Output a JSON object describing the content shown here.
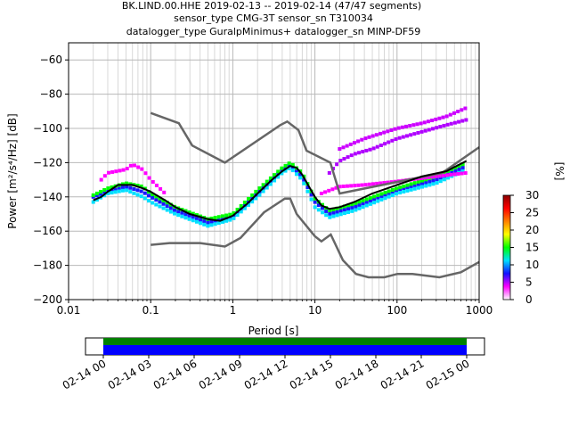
{
  "chart_data": [
    {
      "type": "heatmap",
      "title_lines": [
        "BK.LIND.00.HHE   2019-02-13 -- 2019-02-14  (47/47 segments)",
        "sensor_type CMG-3T sensor_sn T310034",
        "datalogger_type GuralpMinimus+ datalogger_sn MINP-DF59"
      ],
      "xlabel": "Period [s]",
      "ylabel": "Power [m²/s⁴/Hz] [dB]",
      "x_scale": "log",
      "xlim": [
        0.01,
        1000
      ],
      "ylim": [
        -200,
        -50
      ],
      "x_ticks": [
        {
          "value": 0.01,
          "label": "0.01"
        },
        {
          "value": 0.1,
          "label": "0.1"
        },
        {
          "value": 1,
          "label": "1"
        },
        {
          "value": 10,
          "label": "10"
        },
        {
          "value": 100,
          "label": "100"
        },
        {
          "value": 1000,
          "label": "1000"
        }
      ],
      "y_ticks": [
        {
          "value": -60,
          "label": "−60"
        },
        {
          "value": -80,
          "label": "−80"
        },
        {
          "value": -100,
          "label": "−100"
        },
        {
          "value": -120,
          "label": "−120"
        },
        {
          "value": -140,
          "label": "−140"
        },
        {
          "value": -160,
          "label": "−160"
        },
        {
          "value": -180,
          "label": "−180"
        },
        {
          "value": -200,
          "label": "−200"
        }
      ],
      "grid": true,
      "colorbar": {
        "label": "[%]",
        "min": 0,
        "max": 30,
        "ticks": [
          "0",
          "5",
          "10",
          "15",
          "20",
          "25",
          "30"
        ],
        "colors": [
          "#ffffff",
          "#ff00ff",
          "#1010ff",
          "#00e0ff",
          "#00ff00",
          "#ffff00",
          "#ff8000",
          "#ff0000",
          "#8b0000"
        ]
      },
      "noise_models": {
        "color": "#666666",
        "high": {
          "x": [
            0.1,
            0.22,
            0.32,
            0.8,
            3.8,
            4.6,
            6.3,
            7.9,
            15.4,
            20,
            354.8,
            1000
          ],
          "y": [
            -91,
            -97,
            -110,
            -120,
            -98,
            -96,
            -101,
            -113,
            -120,
            -138,
            -126,
            -111
          ]
        },
        "low": {
          "x": [
            0.1,
            0.17,
            0.4,
            0.8,
            1.24,
            2.4,
            4.3,
            5,
            6,
            10,
            12,
            15.6,
            21.9,
            31.6,
            45,
            70,
            101,
            154,
            328,
            600,
            1000
          ],
          "y": [
            -168,
            -167,
            -167,
            -169,
            -164,
            -149,
            -141,
            -141,
            -150,
            -163,
            -166,
            -162,
            -177,
            -185,
            -187,
            -187,
            -185,
            -185,
            -187,
            -184,
            -178
          ]
        }
      },
      "mode_curve": {
        "color": "#000000",
        "x": [
          0.02,
          0.025,
          0.03,
          0.04,
          0.06,
          0.08,
          0.1,
          0.15,
          0.2,
          0.3,
          0.5,
          0.7,
          1,
          1.5,
          2,
          3,
          4,
          5,
          6,
          7,
          8,
          10,
          12,
          15,
          20,
          30,
          50,
          100,
          200,
          400,
          700
        ],
        "y": [
          -142,
          -140,
          -137,
          -133,
          -133,
          -135,
          -137,
          -142,
          -146,
          -150,
          -153,
          -154,
          -151,
          -144,
          -138,
          -130,
          -125,
          -122,
          -123,
          -127,
          -132,
          -140,
          -145,
          -147,
          -146,
          -143,
          -138,
          -133,
          -128,
          -125,
          -119
        ]
      },
      "heatmap_traces": [
        {
          "name": "",
          "color": "#1a1aff",
          "x": [
            0.02,
            0.03,
            0.05,
            0.08,
            0.1,
            0.2,
            0.5,
            1,
            2,
            4,
            5,
            7,
            10,
            15,
            30,
            100,
            300,
            700
          ],
          "y": [
            -140,
            -137,
            -134,
            -137,
            -140,
            -148,
            -155,
            -152,
            -138,
            -124,
            -121,
            -128,
            -143,
            -150,
            -146,
            -136,
            -130,
            -122
          ]
        },
        {
          "name": "",
          "color": "#00e0ff",
          "x": [
            0.02,
            0.03,
            0.05,
            0.08,
            0.1,
            0.2,
            0.5,
            1,
            2,
            4,
            5,
            7,
            10,
            15,
            30,
            100,
            300,
            700
          ],
          "y": [
            -143,
            -138,
            -136,
            -140,
            -143,
            -150,
            -157,
            -153,
            -140,
            -126,
            -123,
            -130,
            -146,
            -152,
            -148,
            -138,
            -132,
            -124
          ]
        },
        {
          "name": "",
          "color": "#00ff00",
          "x": [
            0.02,
            0.03,
            0.05,
            0.08,
            0.1,
            0.2,
            0.5,
            1,
            2,
            4,
            5,
            7,
            10,
            15,
            30,
            100,
            300,
            700
          ],
          "y": [
            -139,
            -135,
            -132,
            -134,
            -138,
            -146,
            -153,
            -150,
            -136,
            -123,
            -120,
            -126,
            -141,
            -148,
            -144,
            -135,
            -128,
            -120
          ]
        },
        {
          "name": "",
          "color": "#ff00ff",
          "x": [
            0.025,
            0.03,
            0.05,
            0.06,
            0.08,
            0.1,
            0.15
          ],
          "y": [
            -130,
            -126,
            -124,
            -121,
            -124,
            -130,
            -138
          ]
        },
        {
          "name": "",
          "color": "#b000ff",
          "x": [
            15,
            20,
            30,
            50,
            100,
            200,
            400,
            700
          ],
          "y": [
            -126,
            -119,
            -115,
            -112,
            -106,
            -102,
            -98,
            -95
          ]
        },
        {
          "name": "",
          "color": "#cc00ff",
          "x": [
            20,
            40,
            100,
            200,
            400,
            700
          ],
          "y": [
            -112,
            -106,
            -100,
            -97,
            -93,
            -88
          ]
        },
        {
          "name": "",
          "color": "#ff00ff",
          "x": [
            12,
            20,
            40,
            100,
            300,
            700
          ],
          "y": [
            -138,
            -134,
            -133,
            -131,
            -128,
            -126
          ]
        }
      ]
    },
    {
      "type": "timeline",
      "x_ticks": [
        "02-14 00",
        "02-14 03",
        "02-14 06",
        "02-14 09",
        "02-14 12",
        "02-14 15",
        "02-14 18",
        "02-14 21",
        "02-15 00"
      ],
      "bars": [
        {
          "name": "",
          "color": "#008000",
          "start": "02-14 00",
          "end": "02-15 00"
        },
        {
          "name": "",
          "color": "#0000ff",
          "start": "02-14 00",
          "end": "02-15 00"
        }
      ]
    }
  ]
}
